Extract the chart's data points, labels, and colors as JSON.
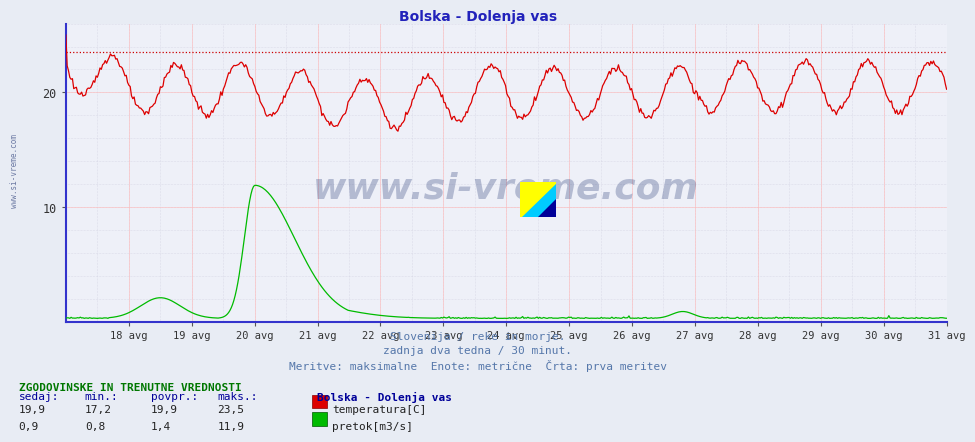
{
  "title": "Bolska - Dolenja vas",
  "title_color": "#2222bb",
  "bg_color": "#e8ecf4",
  "plot_bg_color": "#eef0f8",
  "grid_color_major": "#ffbbbb",
  "grid_color_minor": "#ccccdd",
  "axis_color": "#3333cc",
  "x_labels": [
    "18 avg",
    "19 avg",
    "20 avg",
    "21 avg",
    "22 avg",
    "23 avg",
    "24 avg",
    "25 avg",
    "26 avg",
    "27 avg",
    "28 avg",
    "29 avg",
    "30 avg",
    "31 avg"
  ],
  "yticks": [
    10,
    20
  ],
  "ymax": 26,
  "ymin": 0,
  "dashed_line_value": 23.5,
  "dashed_line_color": "#cc0000",
  "temp_color": "#dd0000",
  "flow_color": "#00bb00",
  "watermark_text": "www.si-vreme.com",
  "watermark_color": "#1a2e6e",
  "subtitle1": "Slovenija / reke in morje.",
  "subtitle2": "zadnja dva tedna / 30 minut.",
  "subtitle3": "Meritve: maksimalne  Enote: metrične  Črta: prva meritev",
  "subtitle_color": "#5577aa",
  "table_header": "ZGODOVINSKE IN TRENUTNE VREDNOSTI",
  "table_header_color": "#007700",
  "col_headers": [
    "sedaj:",
    "min.:",
    "povpr.:",
    "maks.:"
  ],
  "col_header_color": "#000099",
  "row1_values": [
    "19,9",
    "17,2",
    "19,9",
    "23,5"
  ],
  "row2_values": [
    "0,9",
    "0,8",
    "1,4",
    "11,9"
  ],
  "row_color": "#222222",
  "legend_label1": "temperatura[C]",
  "legend_label2": "pretok[m3/s]",
  "legend_station": "Bolska - Dolenja vas",
  "legend_color": "#000099",
  "num_points": 672
}
